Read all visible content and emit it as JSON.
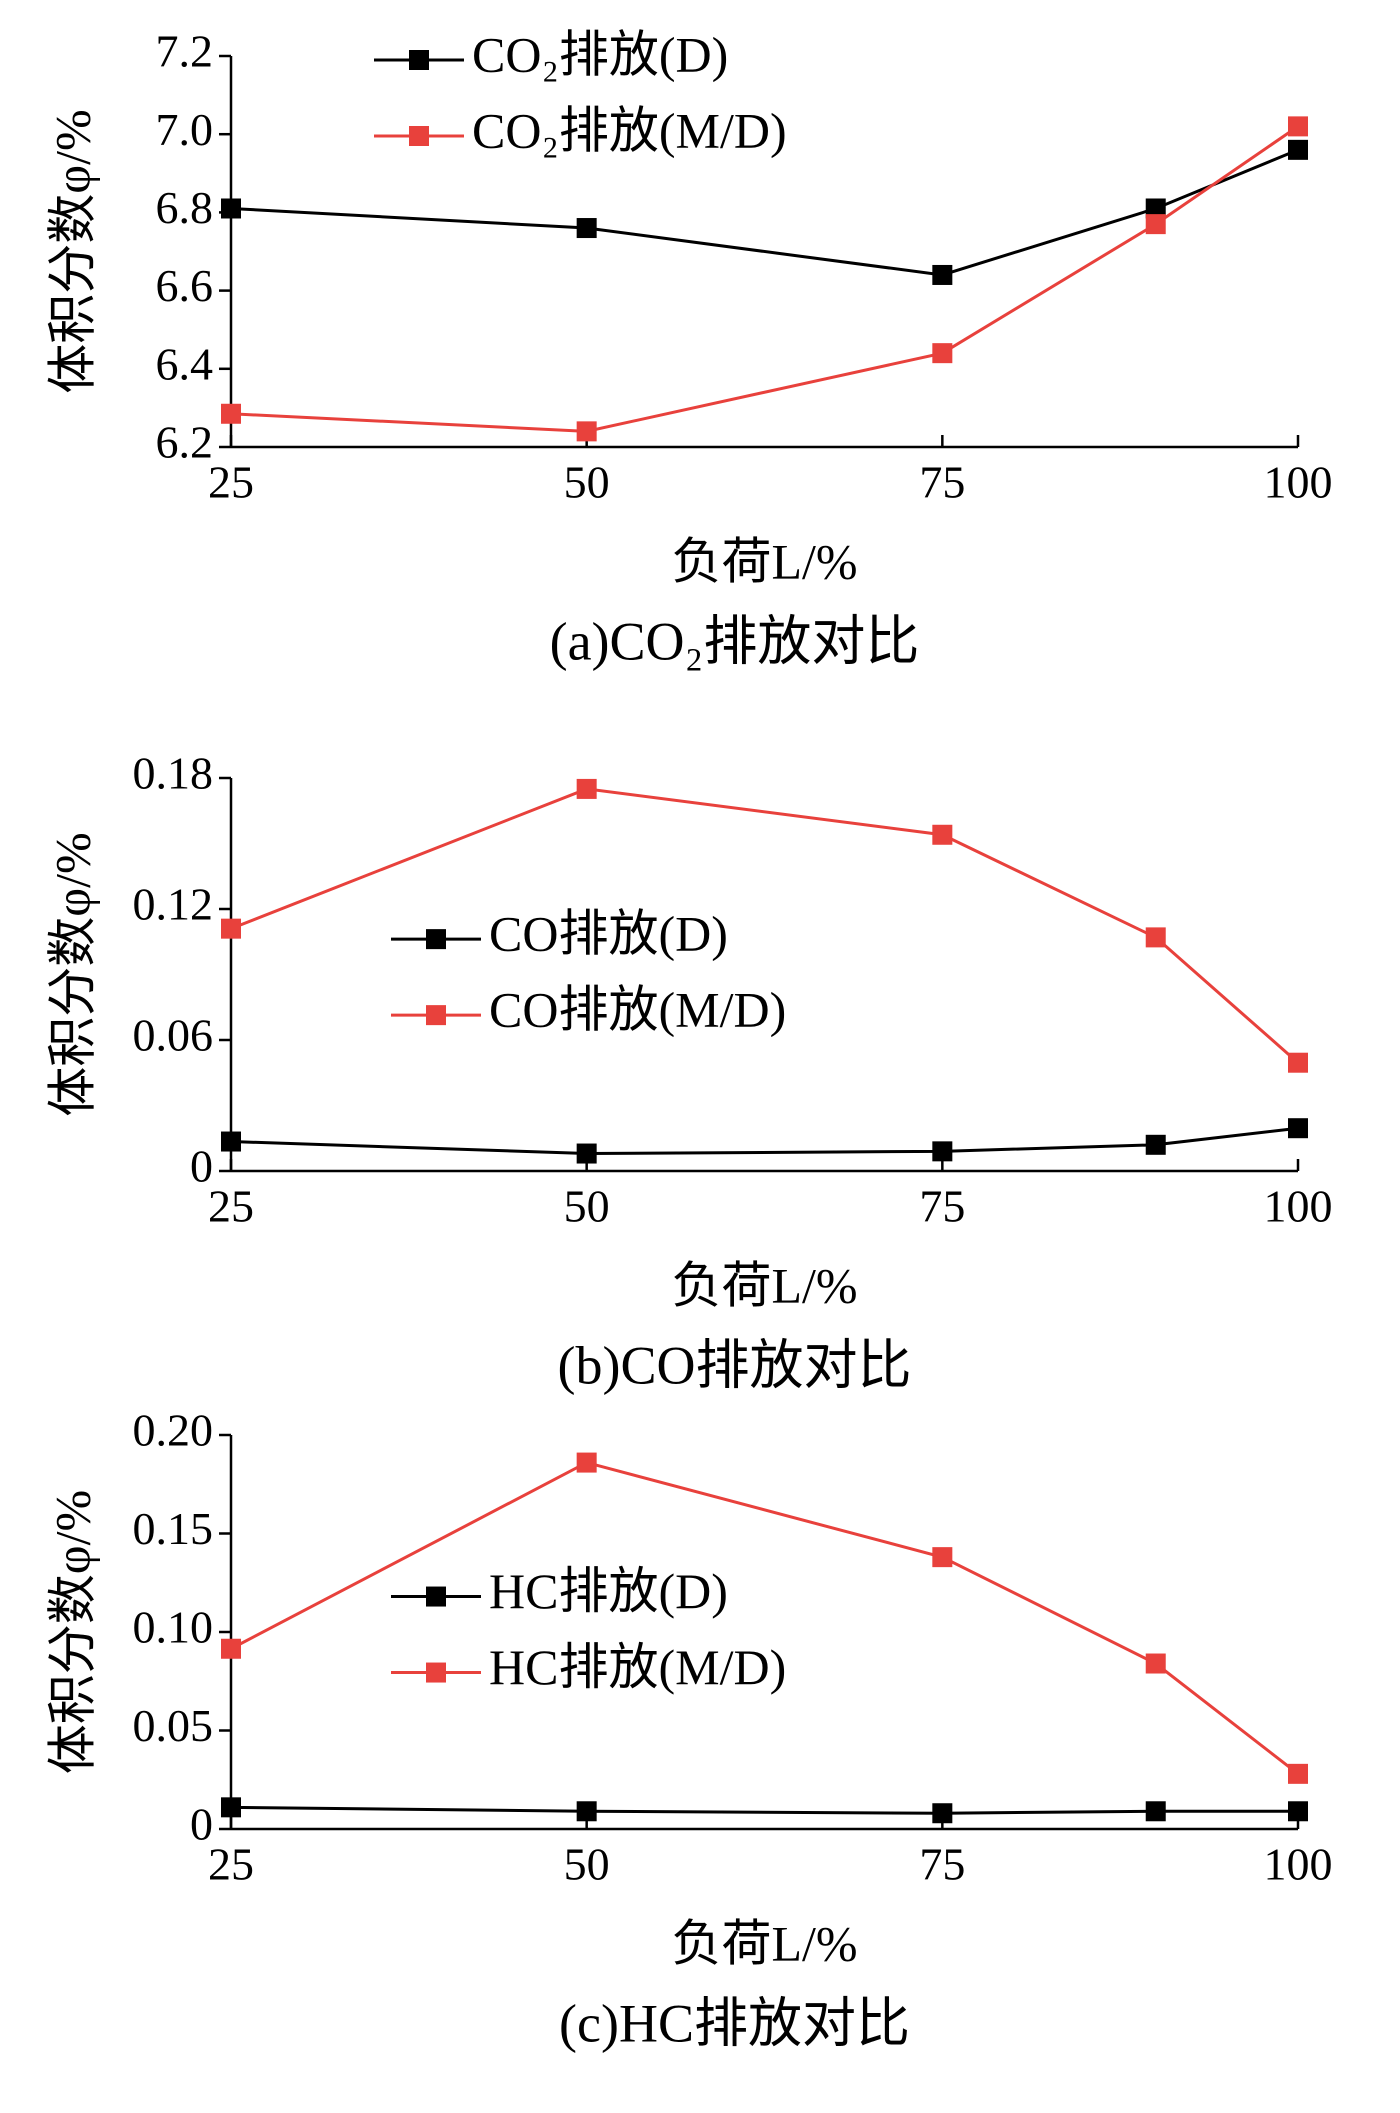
{
  "chart_data": [
    {
      "type": "line",
      "title": "(a)CO₂排放对比",
      "xlabel": "负荷L/%",
      "ylabel": "体积分数φ/%",
      "x": [
        25,
        50,
        75,
        90,
        100
      ],
      "xlim": [
        25,
        100
      ],
      "xticks": [
        25,
        50,
        75,
        100
      ],
      "ylim": [
        6.2,
        7.2
      ],
      "yticks": [
        6.2,
        6.4,
        6.6,
        6.8,
        {
          "value": 7,
          "label": "7.0"
        },
        7.2
      ],
      "grid": false,
      "legend": "upper left",
      "series": [
        {
          "name": "CO₂排放(D)",
          "color": "#000000",
          "values": [
            6.81,
            6.76,
            6.64,
            6.81,
            6.96
          ]
        },
        {
          "name": "CO₂排放(M/D)",
          "color": "#e8413c",
          "values": [
            6.285,
            6.24,
            6.44,
            6.77,
            7.02
          ]
        }
      ]
    },
    {
      "type": "line",
      "title": "(b)CO排放对比",
      "xlabel": "负荷L/%",
      "ylabel": "体积分数φ/%",
      "x": [
        25,
        50,
        75,
        90,
        100
      ],
      "xlim": [
        25,
        100
      ],
      "xticks": [
        25,
        50,
        75,
        100
      ],
      "ylim": [
        0,
        0.18
      ],
      "yticks": [
        0,
        0.06,
        0.12,
        0.18
      ],
      "grid": false,
      "legend": "center left",
      "series": [
        {
          "name": "CO排放(D)",
          "color": "#000000",
          "values": [
            0.0135,
            0.008,
            0.009,
            0.012,
            0.0196
          ]
        },
        {
          "name": "CO排放(M/D)",
          "color": "#e8413c",
          "values": [
            0.111,
            0.175,
            0.154,
            0.107,
            0.0496
          ]
        }
      ]
    },
    {
      "type": "line",
      "title": "(c)HC排放对比",
      "xlabel": "负荷L/%",
      "ylabel": "体积分数φ/%",
      "x": [
        25,
        50,
        75,
        90,
        100
      ],
      "xlim": [
        25,
        100
      ],
      "xticks": [
        25,
        50,
        75,
        100
      ],
      "ylim": [
        0,
        0.2
      ],
      "yticks": [
        0,
        0.05,
        {
          "value": 0.1,
          "label": "0.10"
        },
        0.15,
        {
          "value": 0.2,
          "label": "0.20"
        }
      ],
      "grid": false,
      "legend": "center left",
      "series": [
        {
          "name": "HC排放(D)",
          "color": "#000000",
          "values": [
            0.011,
            0.009,
            0.008,
            0.009,
            0.009
          ]
        },
        {
          "name": "HC排放(M/D)",
          "color": "#e8413c",
          "values": [
            0.0915,
            0.186,
            0.138,
            0.084,
            0.028
          ]
        }
      ]
    }
  ]
}
